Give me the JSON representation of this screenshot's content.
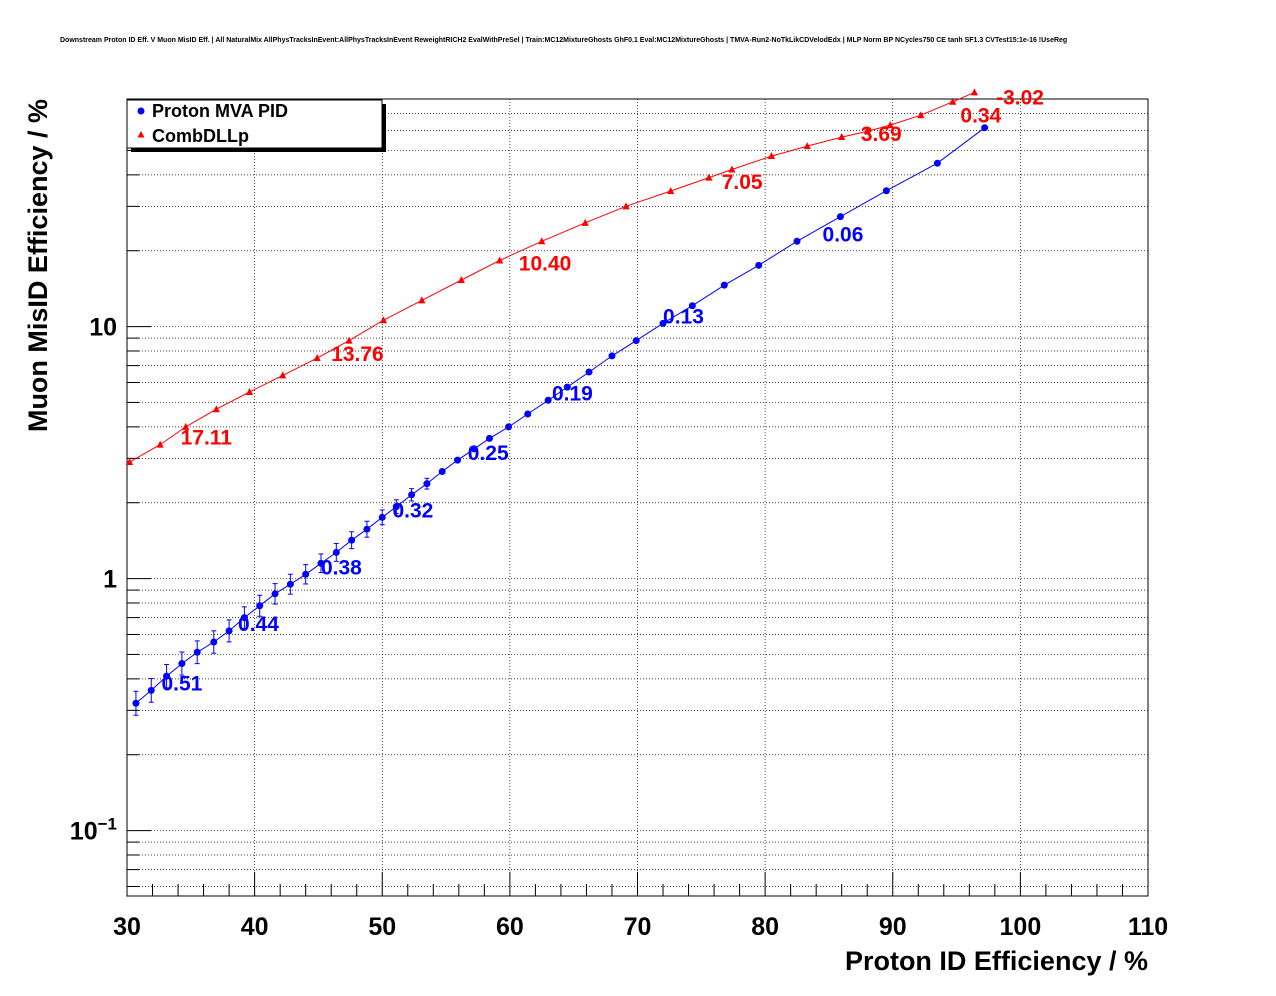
{
  "chart_data": {
    "type": "scatter",
    "title": "Downstream Proton ID Eff. V Muon MisID Eff. | All NaturalMix AllPhysTracksInEvent:AllPhysTracksInEvent ReweightRICH2 EvalWithPreSel | Train:MC12MixtureGhosts GhF0.1 Eval:MC12MixtureGhosts | TMVA-Run2-NoTkLikCDVelodEdx | MLP Norm BP NCycles750 CE tanh SF1.3 CVTest15:1e-16 !UseReg",
    "xlabel": "Proton ID Efficiency / %",
    "ylabel": "Muon MisID Efficiency / %",
    "xlim": [
      30,
      110
    ],
    "ylim": [
      0.055,
      80
    ],
    "yscale": "log",
    "grid": true,
    "legend_position": "top-left",
    "x_ticks": [
      "30",
      "40",
      "50",
      "60",
      "70",
      "80",
      "90",
      "100",
      "110"
    ],
    "y_ticks": [
      {
        "value": 0.1,
        "base": "10",
        "exp": "−1"
      },
      {
        "value": 1,
        "base": "1",
        "exp": ""
      },
      {
        "value": 10,
        "base": "10",
        "exp": ""
      }
    ],
    "series": [
      {
        "name": "Proton MVA PID",
        "color": "#0000ff",
        "marker": "circle",
        "x": [
          30.7,
          31.9,
          33.1,
          34.3,
          35.5,
          36.8,
          38.0,
          39.2,
          40.4,
          41.6,
          42.8,
          44.0,
          45.2,
          46.4,
          47.6,
          48.8,
          50.0,
          51.1,
          52.3,
          53.5,
          54.7,
          55.9,
          57.2,
          58.4,
          59.9,
          61.4,
          63.0,
          64.5,
          66.2,
          68.0,
          69.9,
          72.0,
          74.3,
          76.8,
          79.5,
          82.5,
          85.9,
          89.5,
          93.5,
          97.2
        ],
        "y": [
          0.32,
          0.36,
          0.41,
          0.46,
          0.51,
          0.56,
          0.62,
          0.7,
          0.78,
          0.87,
          0.95,
          1.04,
          1.15,
          1.27,
          1.42,
          1.57,
          1.75,
          1.93,
          2.15,
          2.38,
          2.66,
          2.95,
          3.27,
          3.6,
          4.0,
          4.5,
          5.1,
          5.75,
          6.6,
          7.65,
          8.8,
          10.3,
          12.1,
          14.6,
          17.5,
          21.8,
          27.3,
          34.6,
          44.5,
          61.5
        ],
        "labels": [
          {
            "x": 32.7,
            "y": 0.36,
            "text": "0.51"
          },
          {
            "x": 38.7,
            "y": 0.62,
            "text": "0.44"
          },
          {
            "x": 45.2,
            "y": 1.04,
            "text": "0.38"
          },
          {
            "x": 50.8,
            "y": 1.75,
            "text": "0.32"
          },
          {
            "x": 56.7,
            "y": 2.95,
            "text": "0.25"
          },
          {
            "x": 63.3,
            "y": 5.1,
            "text": "0.19"
          },
          {
            "x": 72.0,
            "y": 10.3,
            "text": "0.13"
          },
          {
            "x": 84.5,
            "y": 21.8,
            "text": "0.06"
          }
        ]
      },
      {
        "name": "CombDLLp",
        "color": "#ff0000",
        "marker": "triangle",
        "x": [
          30.2,
          32.6,
          34.6,
          37.0,
          39.6,
          42.2,
          44.9,
          47.4,
          50.1,
          53.1,
          56.2,
          59.2,
          62.5,
          65.9,
          69.1,
          72.6,
          75.6,
          77.4,
          80.5,
          83.3,
          86.0,
          88.0,
          89.8,
          92.2,
          94.7,
          96.4
        ],
        "y": [
          2.9,
          3.4,
          4.0,
          4.7,
          5.5,
          6.4,
          7.5,
          8.8,
          10.6,
          12.7,
          15.3,
          18.3,
          21.8,
          25.8,
          30.0,
          34.5,
          39.0,
          42.0,
          47.5,
          52.0,
          56.5,
          59.5,
          63.0,
          69.0,
          78.0,
          85.0
        ],
        "labels": [
          {
            "x": 34.2,
            "y": 3.4,
            "text": "17.11"
          },
          {
            "x": 46.0,
            "y": 7.3,
            "text": "13.76"
          },
          {
            "x": 60.7,
            "y": 16.7,
            "text": "10.40"
          },
          {
            "x": 76.6,
            "y": 35.2,
            "text": "7.05"
          },
          {
            "x": 87.5,
            "y": 54.6,
            "text": "3.69"
          },
          {
            "x": 95.3,
            "y": 64.4,
            "text": "0.34"
          },
          {
            "x": 98.1,
            "y": 76.0,
            "text": "-3.02"
          }
        ]
      }
    ]
  }
}
